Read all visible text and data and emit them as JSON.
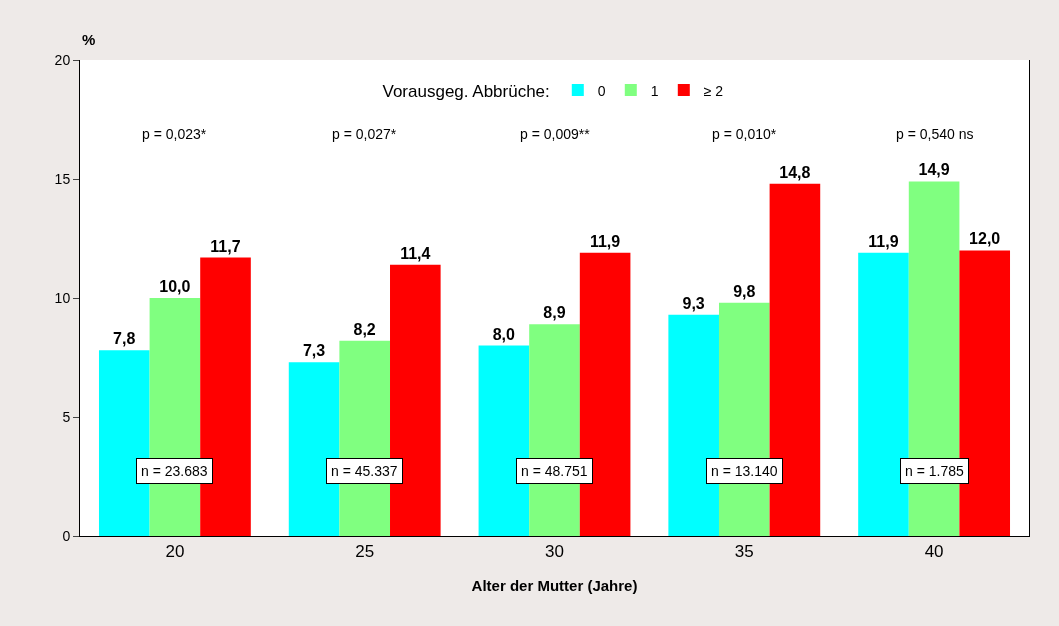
{
  "chart_data": {
    "type": "bar",
    "xlabel": "Alter der Mutter (Jahre)",
    "ylabel": "%",
    "legend_title": "Vorausgeg. Abbrüche:",
    "legend": "top",
    "grid": false,
    "categories": [
      "20",
      "25",
      "30",
      "35",
      "40"
    ],
    "series": [
      {
        "name": "0",
        "color": "#00ffff",
        "values": [
          7.8,
          7.3,
          8.0,
          9.3,
          11.9
        ],
        "value_labels": [
          "7,8",
          "7,3",
          "8,0",
          "9,3",
          "11,9"
        ]
      },
      {
        "name": "1",
        "color": "#80ff80",
        "values": [
          10.0,
          8.2,
          8.9,
          9.8,
          14.9
        ],
        "value_labels": [
          "10,0",
          "8,2",
          "8,9",
          "9,8",
          "14,9"
        ]
      },
      {
        "name": "≥ 2",
        "color": "#ff0000",
        "values": [
          11.7,
          11.4,
          11.9,
          14.8,
          12.0
        ],
        "value_labels": [
          "11,7",
          "11,4",
          "11,9",
          "14,8",
          "12,0"
        ]
      }
    ],
    "ylim": [
      0,
      20
    ],
    "yticks": [
      0,
      5,
      10,
      15,
      20
    ],
    "annotations": [
      "p = 0,023*",
      "p = 0,027*",
      "p = 0,009**",
      "p = 0,010*",
      "p = 0,540 ns",
      "n = 23.683",
      "n = 45.337",
      "n = 48.751",
      "n = 13.140",
      "n = 1.785"
    ]
  }
}
